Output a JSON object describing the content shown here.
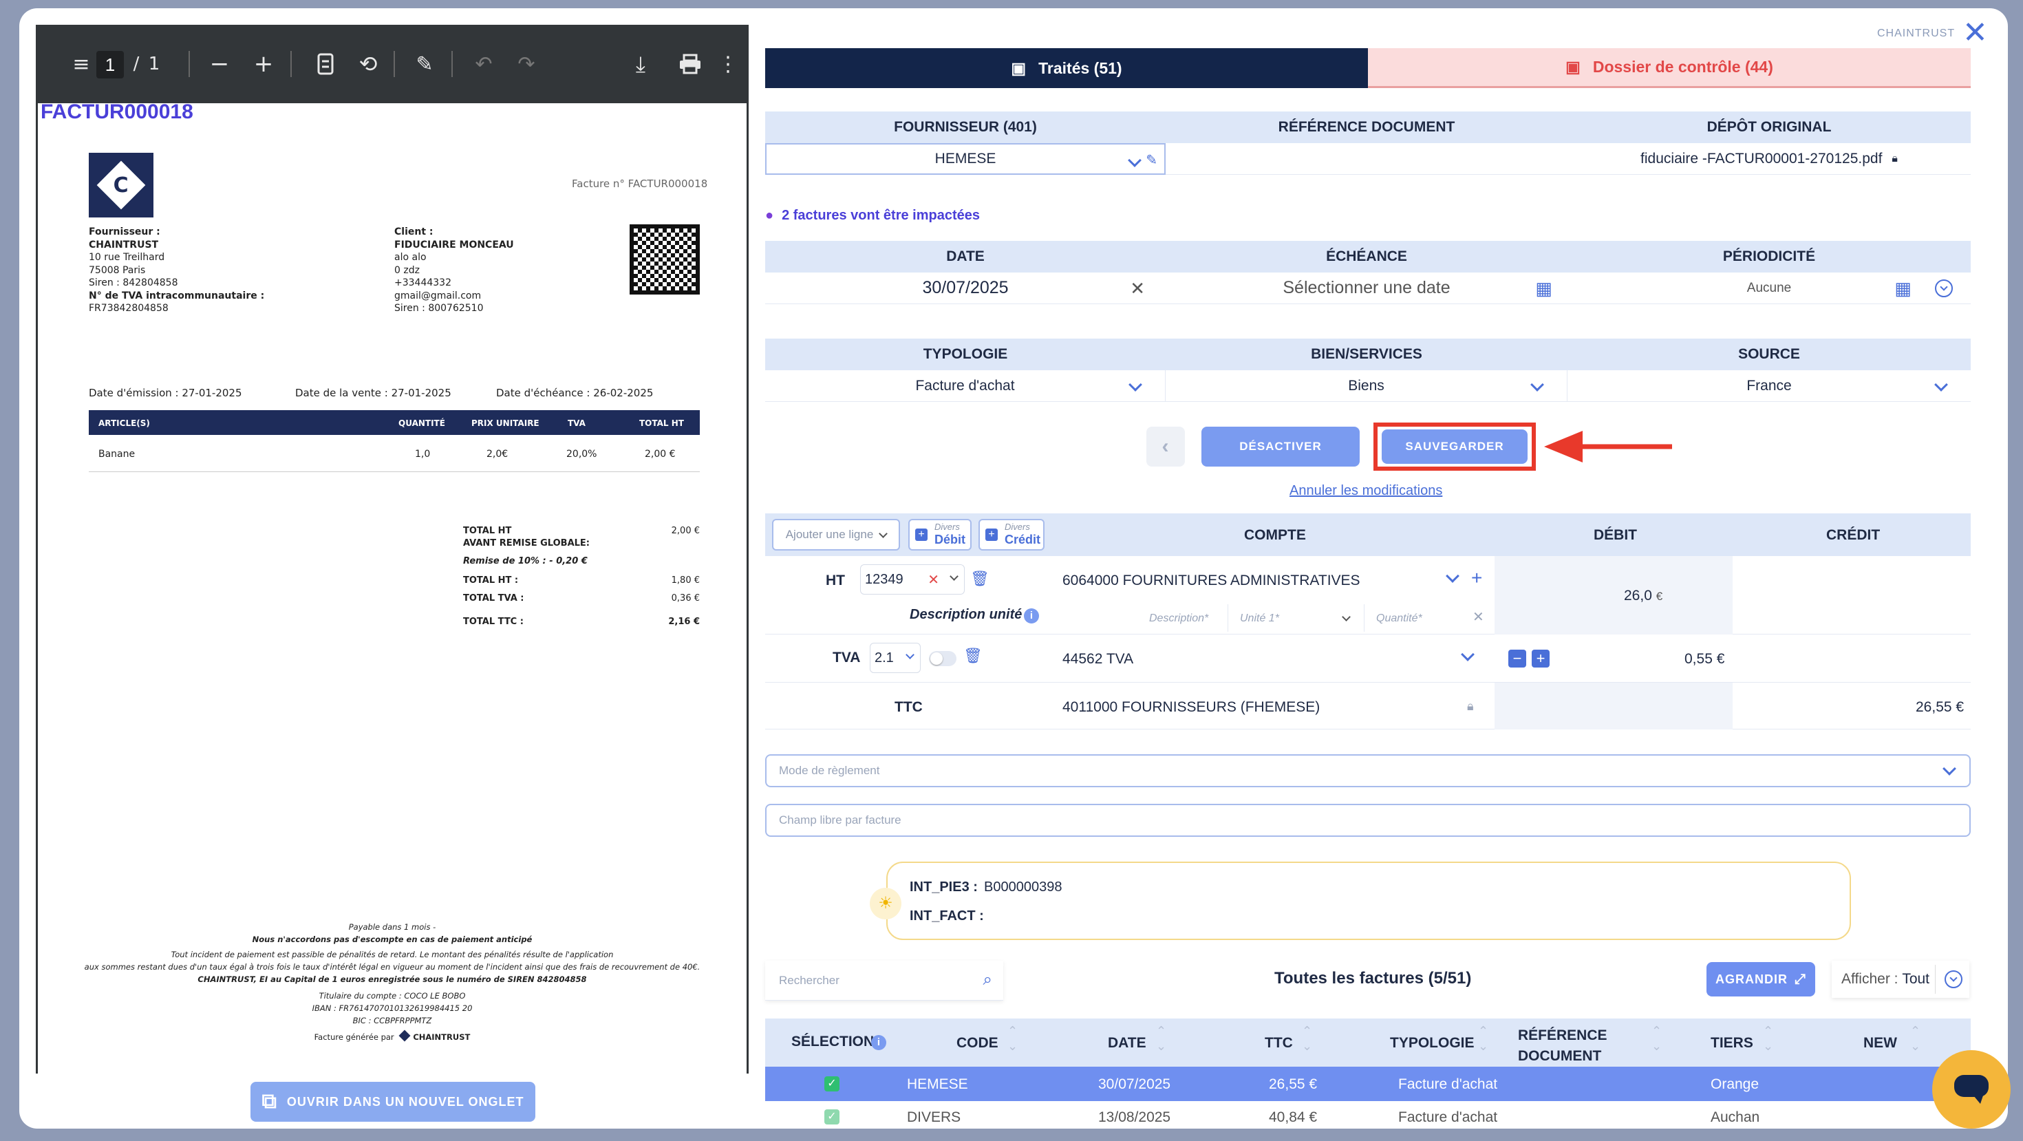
{
  "pdf_toolbar": {
    "page_current": "1",
    "page_separator": "/",
    "page_total": "1"
  },
  "invoice": {
    "header_id": "FACTUR000018",
    "facture_no": "Facture n° FACTUR000018",
    "logo_letter": "C",
    "supplier_lines": [
      "Fournisseur :",
      "CHAINTRUST",
      "10 rue Treilhard",
      "75008 Paris",
      "Siren : 842804858",
      "N° de TVA intracommunautaire :",
      "FR73842804858"
    ],
    "client_lines": [
      "Client :",
      "FIDUCIAIRE MONCEAU",
      "alo alo",
      "0 zdz",
      "+33444332",
      "gmail@gmail.com",
      "Siren : 800762510"
    ],
    "date_emission": "Date d'émission : 27-01-2025",
    "date_vente": "Date de la vente : 27-01-2025",
    "date_echeance": "Date d'échéance : 26-02-2025",
    "table_headers": [
      "ARTICLE(S)",
      "QUANTITÉ",
      "PRIX UNITAIRE",
      "TVA",
      "TOTAL HT"
    ],
    "table_row": [
      "Banane",
      "1,0",
      "2,0€",
      "20,0%",
      "2,00 €"
    ],
    "totals": [
      {
        "label": "TOTAL HT",
        "value": "2,00 €"
      },
      {
        "label": "AVANT REMISE GLOBALE:",
        "value": ""
      },
      {
        "label": "Remise de 10% : - 0,20 €",
        "value": ""
      },
      {
        "label": "TOTAL HT :",
        "value": "1,80 €"
      },
      {
        "label": "TOTAL TVA :",
        "value": "0,36 €"
      },
      {
        "label": "TOTAL TTC :",
        "value": "2,16 €"
      }
    ],
    "footer_lines": [
      "Payable dans 1 mois -",
      "Nous n'accordons pas d'escompte en cas de paiement anticipé",
      "Tout incident de paiement est passible de pénalités de retard. Le montant des pénalités résulte de l'application",
      "aux sommes restant dues d'un taux égal à trois fois le taux d'intérêt légal en vigueur au moment de l'incident ainsi que des frais de recouvrement de 40€.",
      "CHAINTRUST, EI au Capital de 1 euros enregistrée sous le numéro de SIREN 842804858",
      "Titulaire du compte : COCO LE BOBO",
      "IBAN : FR7614707010132619984415 20",
      "BIC : CCBPFRPPMTZ"
    ],
    "generated_by": "Facture générée par",
    "brand": "CHAINTRUST"
  },
  "open_new_tab": "OUVRIR DANS UN NOUVEL ONGLET",
  "top": {
    "brand": "CHAINTRUST",
    "tab_traites": "Traités (51)",
    "tab_controle": "Dossier de contrôle (44)"
  },
  "doc_info": {
    "h_fournisseur": "FOURNISSEUR (401)",
    "h_reference": "RÉFÉRENCE DOCUMENT",
    "h_depot": "DÉPÔT ORIGINAL",
    "fournisseur": "HEMESE",
    "reference": "",
    "depot": "fiduciaire -FACTUR00001-270125.pdf"
  },
  "impact_note": "2 factures vont être impactées",
  "dates": {
    "h_date": "DATE",
    "h_echeance": "ÉCHÉANCE",
    "h_periodicite": "PÉRIODICITÉ",
    "date": "30/07/2025",
    "echeance_placeholder": "Sélectionner une date",
    "periodicite": "Aucune"
  },
  "types": {
    "h_typologie": "TYPOLOGIE",
    "h_bien": "BIEN/SERVICES",
    "h_source": "SOURCE",
    "typologie": "Facture d'achat",
    "bien": "Biens",
    "source": "France"
  },
  "actions": {
    "desactiver": "DÉSACTIVER",
    "sauvegarder": "SAUVEGARDER",
    "annuler": "Annuler les modifications"
  },
  "ecritures": {
    "add_line": "Ajouter une ligne",
    "divers": "Divers",
    "debit_small": "Débit",
    "credit_small": "Crédit",
    "h_compte": "COMPTE",
    "h_debit": "DÉBIT",
    "h_credit": "CRÉDIT",
    "ht_label": "HT",
    "ht_code": "12349",
    "ht_compte": "6064000 FOURNITURES ADMINISTRATIVES",
    "ht_debit": "26,0",
    "euro": "€",
    "desc_unite": "Description unité",
    "ph_description": "Description*",
    "ph_unite": "Unité 1*",
    "ph_quantite": "Quantité*",
    "tva_label": "TVA",
    "tva_rate": "2.1",
    "tva_compte": "44562 TVA",
    "tva_debit": "0,55 €",
    "ttc_label": "TTC",
    "ttc_compte": "4011000 FOURNISSEURS (FHEMESE)",
    "ttc_credit": "26,55 €"
  },
  "mode_reglement": "Mode de règlement",
  "champ_libre": "Champ libre par facture",
  "info_box": {
    "k1": "INT_PIE3 :",
    "v1": "B000000398",
    "k2": "INT_FACT :",
    "v2": ""
  },
  "list": {
    "search_placeholder": "Rechercher",
    "title": "Toutes les factures (5/51)",
    "agrandir": "AGRANDIR",
    "afficher_label": "Afficher :",
    "afficher_value": "Tout",
    "headers": [
      "SÉLECTION",
      "CODE",
      "DATE",
      "TTC",
      "TYPOLOGIE",
      "RÉFÉRENCE DOCUMENT",
      "TIERS",
      "NEW"
    ],
    "rows": [
      {
        "code": "HEMESE",
        "date": "30/07/2025",
        "ttc": "26,55 €",
        "typologie": "Facture d'achat",
        "tiers": "Orange"
      },
      {
        "code": "DIVERS",
        "date": "13/08/2025",
        "ttc": "40,84 €",
        "typologie": "Facture d'achat",
        "tiers": "Auchan"
      }
    ]
  },
  "colors": {
    "navy": "#13254a",
    "accent": "#4a6fd8",
    "highlight_red": "#e8392b",
    "header_bg": "#dde7f8"
  }
}
